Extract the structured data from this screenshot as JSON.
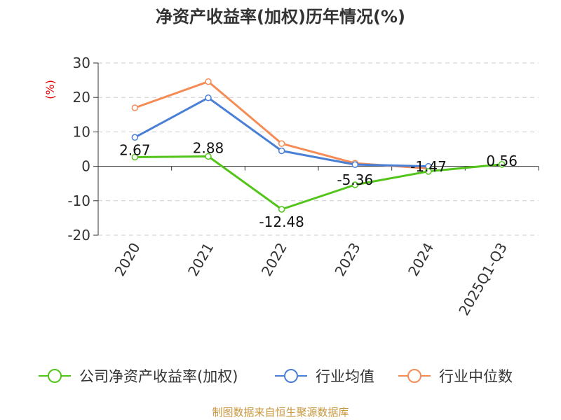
{
  "chart_data": {
    "type": "line",
    "title": "净资产收益率(加权)历年情况(%)",
    "unit_label": "(%)",
    "categories": [
      "2020",
      "2021",
      "2022",
      "2023",
      "2024",
      "2025Q1-Q3"
    ],
    "ylim": [
      -20,
      30
    ],
    "yticks": [
      30,
      20,
      10,
      0,
      -10,
      -20
    ],
    "grid": true,
    "legend_position": "bottom",
    "series": [
      {
        "name": "公司净资产收益率(加权)",
        "color": "#52c41a",
        "values": [
          2.67,
          2.88,
          -12.48,
          -5.36,
          -1.47,
          0.56
        ],
        "labels": [
          "2.67",
          "2.88",
          "-12.48",
          "-5.36",
          "-1.47",
          "0.56"
        ]
      },
      {
        "name": "行业均值",
        "color": "#4a7fd6",
        "values": [
          8.4,
          19.9,
          4.5,
          0.5,
          0.0,
          null
        ],
        "labels": []
      },
      {
        "name": "行业中位数",
        "color": "#f58c56",
        "values": [
          17.0,
          24.6,
          6.6,
          0.9,
          -0.6,
          null
        ],
        "labels": []
      }
    ]
  },
  "source": "制图数据来自恒生聚源数据库"
}
